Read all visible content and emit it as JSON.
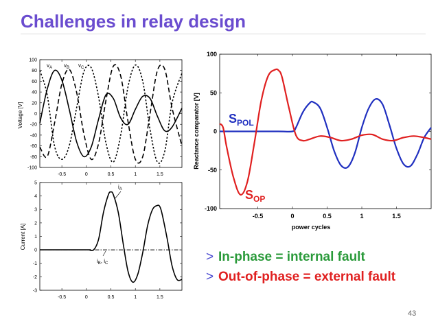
{
  "slide": {
    "title": "Challenges in relay design",
    "page_number": "43",
    "bullets": [
      {
        "marker": ">",
        "text": "In-phase = internal fault",
        "color": "#2a9a3a"
      },
      {
        "marker": ">",
        "text": "Out-of-phase = external fault",
        "color": "#e02020"
      }
    ]
  },
  "chart_data": [
    {
      "type": "line",
      "ylabel": "Voltage [V]",
      "xlabel": "",
      "xlim": [
        -0.95,
        1.95
      ],
      "ylim": [
        -100,
        100
      ],
      "x_ticks": [
        "-0.5",
        "0",
        "0.5",
        "1",
        "1.5"
      ],
      "x_tick_values": [
        -0.5,
        0,
        0.5,
        1,
        1.5
      ],
      "y_ticks": [
        "100",
        "80",
        "60",
        "40",
        "20",
        "0",
        "-20",
        "-40",
        "-60",
        "-80",
        "-100"
      ],
      "y_tick_values": [
        100,
        80,
        60,
        40,
        20,
        0,
        -20,
        -40,
        -60,
        -80,
        -100
      ],
      "series_labels": [
        "vA",
        "vB",
        "vC"
      ],
      "series": [
        {
          "name": "vA",
          "style": "solid",
          "x": [
            -0.95,
            -0.8,
            -0.65,
            -0.5,
            -0.35,
            -0.2,
            -0.05,
            0.1,
            0.25,
            0.4,
            0.55,
            0.7,
            0.85,
            1.0,
            1.15,
            1.3,
            1.45,
            1.6,
            1.75,
            1.95
          ],
          "y": [
            -18,
            45,
            80,
            62,
            8,
            -52,
            -80,
            -62,
            -10,
            35,
            28,
            -8,
            -20,
            8,
            32,
            28,
            -5,
            -32,
            -25,
            10
          ]
        },
        {
          "name": "vB",
          "style": "dashed",
          "x": [
            -0.95,
            -0.8,
            -0.65,
            -0.5,
            -0.35,
            -0.2,
            -0.05,
            0.1,
            0.25,
            0.4,
            0.55,
            0.7,
            0.85,
            1.0,
            1.15,
            1.3,
            1.45,
            1.6,
            1.75,
            1.95
          ],
          "y": [
            -62,
            -80,
            -18,
            55,
            82,
            40,
            -38,
            -85,
            -55,
            25,
            88,
            70,
            -15,
            -85,
            -80,
            0,
            80,
            82,
            10,
            -60
          ]
        },
        {
          "name": "vC",
          "style": "dotted",
          "x": [
            -0.95,
            -0.8,
            -0.65,
            -0.5,
            -0.35,
            -0.2,
            -0.05,
            0.1,
            0.25,
            0.4,
            0.55,
            0.7,
            0.85,
            1.0,
            1.15,
            1.3,
            1.45,
            1.6,
            1.75,
            1.95
          ],
          "y": [
            80,
            35,
            -60,
            -85,
            -60,
            10,
            78,
            85,
            30,
            -55,
            -90,
            -40,
            50,
            90,
            60,
            -30,
            -90,
            -70,
            20,
            75
          ]
        }
      ]
    },
    {
      "type": "line",
      "ylabel": "Current [A]",
      "xlabel": "",
      "xlim": [
        -0.95,
        1.95
      ],
      "ylim": [
        -3,
        5
      ],
      "x_ticks": [
        "-0.5",
        "0",
        "0.5",
        "1",
        "1.5"
      ],
      "x_tick_values": [
        -0.5,
        0,
        0.5,
        1,
        1.5
      ],
      "y_ticks": [
        "5",
        "4",
        "3",
        "2",
        "1",
        "0",
        "-1",
        "-2",
        "-3"
      ],
      "y_tick_values": [
        5,
        4,
        3,
        2,
        1,
        0,
        -1,
        -2,
        -3
      ],
      "labels": [
        "iA",
        "iB, iC"
      ],
      "series": [
        {
          "name": "iA",
          "style": "solid",
          "x": [
            -0.95,
            0.0,
            0.05,
            0.15,
            0.25,
            0.35,
            0.45,
            0.5,
            0.55,
            0.65,
            0.75,
            0.85,
            0.95,
            1.05,
            1.15,
            1.25,
            1.35,
            1.45,
            1.5,
            1.55,
            1.65,
            1.75,
            1.85,
            1.95
          ],
          "y": [
            0,
            0,
            0,
            0,
            0.8,
            2.8,
            4.1,
            4.3,
            4.1,
            2.8,
            0.5,
            -1.6,
            -2.4,
            -1.8,
            -0.2,
            1.8,
            3.0,
            3.3,
            3.2,
            2.6,
            0.8,
            -1.2,
            -2.2,
            -2.2
          ]
        },
        {
          "name": "iB, iC",
          "style": "dash-dot",
          "x": [
            -0.95,
            1.95
          ],
          "y": [
            0,
            0
          ]
        }
      ]
    },
    {
      "type": "line",
      "ylabel": "Reactance comparator [V]",
      "xlabel": "power cycles",
      "xlim": [
        -1.05,
        2.0
      ],
      "ylim": [
        -100,
        100
      ],
      "x_ticks": [
        "-0.5",
        "0",
        "0.5",
        "1",
        "1.5"
      ],
      "x_tick_values": [
        -0.5,
        0,
        0.5,
        1,
        1.5
      ],
      "y_ticks": [
        "100",
        "50",
        "0",
        "-50",
        "-100"
      ],
      "y_tick_values": [
        100,
        50,
        0,
        -50,
        -100
      ],
      "series_labels": [
        "SPOL",
        "SOP"
      ],
      "series": [
        {
          "name": "SPOL",
          "color": "#2030c0",
          "x": [
            -1.05,
            -0.6,
            -0.2,
            0.0,
            0.05,
            0.15,
            0.25,
            0.3,
            0.4,
            0.5,
            0.6,
            0.7,
            0.8,
            0.9,
            1.0,
            1.1,
            1.2,
            1.3,
            1.4,
            1.5,
            1.6,
            1.7,
            1.8,
            1.9,
            2.0
          ],
          "y": [
            0,
            0,
            0,
            0,
            5,
            25,
            37,
            38,
            30,
            5,
            -25,
            -44,
            -46,
            -28,
            5,
            30,
            42,
            35,
            8,
            -22,
            -42,
            -45,
            -30,
            -8,
            5
          ]
        },
        {
          "name": "SOP",
          "color": "#e02020",
          "x": [
            -1.05,
            -1.0,
            -0.95,
            -0.85,
            -0.75,
            -0.65,
            -0.55,
            -0.45,
            -0.35,
            -0.25,
            -0.2,
            -0.15,
            -0.05,
            0.05,
            0.15,
            0.25,
            0.4,
            0.55,
            0.7,
            0.85,
            1.0,
            1.15,
            1.3,
            1.45,
            1.6,
            1.75,
            1.9,
            2.0
          ],
          "y": [
            10,
            5,
            -20,
            -60,
            -82,
            -65,
            -15,
            40,
            72,
            80,
            79,
            70,
            30,
            -5,
            -12,
            -10,
            -6,
            -8,
            -12,
            -10,
            -5,
            -4,
            -10,
            -12,
            -8,
            -6,
            -8,
            -10
          ]
        }
      ]
    }
  ]
}
